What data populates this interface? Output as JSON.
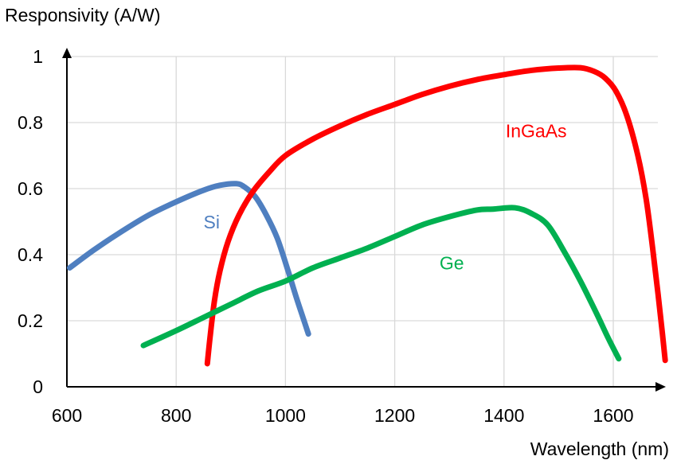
{
  "chart_data": {
    "type": "line",
    "title": "",
    "ylabel": "Responsivity (A/W)",
    "xlabel": "Wavelength (nm)",
    "xlim": [
      600,
      1700
    ],
    "ylim": [
      0,
      1
    ],
    "xticks": [
      "600",
      "800",
      "1000",
      "1200",
      "1400",
      "1600"
    ],
    "yticks": [
      "0",
      "0.2",
      "0.4",
      "0.6",
      "0.8",
      "1"
    ],
    "xtick_values": [
      600,
      800,
      1000,
      1200,
      1400,
      1600
    ],
    "ytick_values": [
      0,
      0.2,
      0.4,
      0.6,
      0.8,
      1
    ],
    "grid": true,
    "legend": "none",
    "series": [
      {
        "name": "Si",
        "color": "#4f7fc0",
        "label_at": [
          850,
          0.48
        ],
        "x": [
          605,
          650,
          700,
          750,
          800,
          850,
          880,
          910,
          925,
          945,
          965,
          985,
          1005,
          1020,
          1032,
          1042
        ],
        "y": [
          0.36,
          0.415,
          0.47,
          0.52,
          0.56,
          0.595,
          0.61,
          0.615,
          0.605,
          0.575,
          0.52,
          0.45,
          0.35,
          0.27,
          0.21,
          0.16
        ]
      },
      {
        "name": "InGaAs",
        "color": "#ff0000",
        "label_at": [
          1403,
          0.755
        ],
        "x": [
          857,
          862,
          870,
          880,
          895,
          915,
          940,
          970,
          1000,
          1050,
          1100,
          1150,
          1200,
          1250,
          1300,
          1350,
          1400,
          1450,
          1500,
          1540,
          1565,
          1585,
          1605,
          1625,
          1645,
          1660,
          1672,
          1682,
          1690,
          1695
        ],
        "y": [
          0.07,
          0.15,
          0.26,
          0.35,
          0.44,
          0.52,
          0.59,
          0.65,
          0.7,
          0.75,
          0.79,
          0.825,
          0.855,
          0.885,
          0.91,
          0.93,
          0.945,
          0.958,
          0.965,
          0.966,
          0.955,
          0.935,
          0.895,
          0.82,
          0.7,
          0.57,
          0.42,
          0.28,
          0.16,
          0.08
        ]
      },
      {
        "name": "Ge",
        "color": "#00b050",
        "label_at": [
          1282,
          0.355
        ],
        "x": [
          740,
          800,
          850,
          900,
          950,
          1000,
          1050,
          1100,
          1150,
          1200,
          1250,
          1300,
          1350,
          1380,
          1420,
          1450,
          1480,
          1510,
          1540,
          1570,
          1590,
          1610
        ],
        "y": [
          0.125,
          0.17,
          0.21,
          0.25,
          0.29,
          0.32,
          0.36,
          0.39,
          0.42,
          0.455,
          0.49,
          0.515,
          0.535,
          0.538,
          0.542,
          0.525,
          0.49,
          0.41,
          0.32,
          0.22,
          0.15,
          0.085
        ]
      }
    ]
  }
}
